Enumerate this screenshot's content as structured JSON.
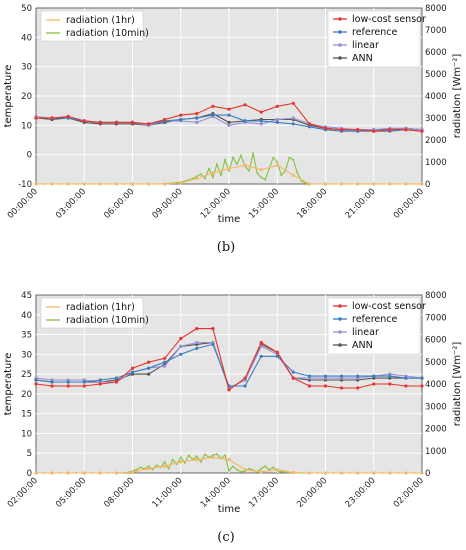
{
  "charts": [
    {
      "label": "(b)",
      "xlabel": "time",
      "ylabel_left": "temperature",
      "ylabel_right": "radiation [Wm⁻²]",
      "xtick_labels": [
        "00:00:00",
        "03:00:00",
        "06:00:00",
        "09:00:00",
        "12:00:00",
        "15:00:00",
        "18:00:00",
        "21:00:00",
        "00:00:00"
      ],
      "ylim": [
        -10,
        50
      ],
      "yticks": [
        "-10",
        "0",
        "10",
        "20",
        "30",
        "40",
        "50"
      ],
      "y2lim": [
        0,
        8000
      ],
      "y2ticks": [
        "0",
        "1000",
        "2000",
        "3000",
        "4000",
        "5000",
        "6000",
        "7000",
        "8000"
      ],
      "legend_left": [
        "radiation (1hr)",
        "radiation (10min)"
      ],
      "legend_right": [
        "low-cost sensor",
        "reference",
        "linear",
        "ANN"
      ]
    },
    {
      "label": "(c)",
      "xlabel": "time",
      "ylabel_left": "temperature",
      "ylabel_right": "radiation [Wm⁻²]",
      "xtick_labels": [
        "02:00:00",
        "05:00:00",
        "08:00:00",
        "11:00:00",
        "14:00:00",
        "17:00:00",
        "20:00:00",
        "23:00:00",
        "02:00:00"
      ],
      "ylim": [
        0,
        45
      ],
      "yticks": [
        "0",
        "5",
        "10",
        "15",
        "20",
        "25",
        "30",
        "35",
        "40",
        "45"
      ],
      "y2lim": [
        0,
        8000
      ],
      "y2ticks": [
        "0",
        "1000",
        "2000",
        "3000",
        "4000",
        "5000",
        "6000",
        "7000",
        "8000"
      ],
      "legend_left": [
        "radiation (1hr)",
        "radiation (10min)"
      ],
      "legend_right": [
        "low-cost sensor",
        "reference",
        "linear",
        "ANN"
      ]
    }
  ],
  "colors": {
    "low_cost": "#e8342c",
    "reference": "#3a7fbe",
    "linear": "#9b8fd6",
    "ann": "#555555",
    "rad_1hr": "#f5b862",
    "rad_10min": "#88c040",
    "plot_bg": "#e5e5e5"
  },
  "chart_data": [
    {
      "type": "line",
      "x": [
        0,
        1,
        2,
        3,
        4,
        5,
        6,
        7,
        8,
        9,
        10,
        11,
        12,
        13,
        14,
        15,
        16,
        17,
        18,
        19,
        20,
        21,
        22,
        23,
        24
      ],
      "series": [
        {
          "name": "low-cost sensor",
          "axis": "left",
          "values": [
            12.5,
            12.5,
            13,
            11.5,
            11,
            11,
            11,
            10.5,
            12,
            13.5,
            14,
            16.5,
            15.5,
            17,
            14.5,
            16.5,
            17.5,
            10.5,
            9,
            8.5,
            8.5,
            8,
            8.5,
            8.5,
            8
          ]
        },
        {
          "name": "reference",
          "axis": "left",
          "values": [
            12.5,
            12.5,
            12.5,
            11.5,
            11,
            11,
            11,
            10.5,
            11.5,
            12,
            12.5,
            13.5,
            13.5,
            11.5,
            11.5,
            11,
            10.5,
            9.5,
            8.5,
            8,
            8,
            8,
            8,
            8.5,
            8
          ]
        },
        {
          "name": "linear",
          "axis": "left",
          "values": [
            13,
            12.5,
            13,
            11.5,
            11,
            11,
            11,
            10,
            11.5,
            11.5,
            11,
            13,
            10,
            11,
            10.5,
            12,
            12.5,
            10.5,
            9.5,
            9,
            8.5,
            8.5,
            9,
            9,
            8.5
          ]
        },
        {
          "name": "ANN",
          "axis": "left",
          "values": [
            12.5,
            12,
            12.5,
            11,
            10.5,
            10.5,
            10.5,
            10,
            11,
            12,
            12.5,
            14,
            11,
            11.5,
            12,
            12,
            12,
            10,
            9,
            8.5,
            8.5,
            8.5,
            8.5,
            9,
            8.5
          ]
        },
        {
          "name": "radiation (1hr)",
          "axis": "right",
          "values": [
            0,
            0,
            0,
            0,
            0,
            0,
            0,
            0,
            0,
            50,
            250,
            500,
            700,
            850,
            650,
            850,
            400,
            0,
            0,
            0,
            0,
            0,
            0,
            0,
            0
          ]
        }
      ],
      "series_10min": {
        "name": "radiation (10min)",
        "axis": "right",
        "x": [
          0,
          0.5,
          1,
          1.5,
          2,
          2.5,
          3,
          3.5,
          4,
          4.5,
          5,
          5.5,
          6,
          6.5,
          7,
          7.5,
          8,
          8.25,
          8.5,
          8.75,
          9,
          9.25,
          9.5,
          9.75,
          10,
          10.25,
          10.5,
          10.75,
          11,
          11.25,
          11.5,
          11.75,
          12,
          12.25,
          12.5,
          12.75,
          13,
          13.25,
          13.5,
          13.75,
          14,
          14.25,
          14.5,
          14.75,
          15,
          15.25,
          15.5,
          15.75,
          16,
          16.25,
          16.5,
          16.75,
          17,
          17.5,
          18,
          18.5,
          19,
          19.5,
          20,
          20.5,
          21,
          21.5,
          22,
          22.5,
          23,
          23.5,
          24
        ],
        "values": [
          0,
          0,
          0,
          0,
          0,
          0,
          0,
          0,
          0,
          0,
          0,
          0,
          0,
          0,
          0,
          0,
          10,
          20,
          40,
          60,
          90,
          130,
          180,
          250,
          350,
          450,
          250,
          700,
          300,
          900,
          400,
          1100,
          600,
          1200,
          900,
          1300,
          800,
          600,
          1400,
          500,
          300,
          200,
          700,
          1200,
          1000,
          400,
          600,
          1200,
          1100,
          500,
          150,
          40,
          0,
          0,
          0,
          0,
          0,
          0,
          0,
          0,
          0,
          0,
          0,
          0,
          0,
          0,
          0
        ]
      },
      "xlabel": "time",
      "ylabel": "temperature",
      "ylim": [
        -10,
        50
      ],
      "y2lim": [
        0,
        8000
      ]
    },
    {
      "type": "line",
      "x": [
        0,
        1,
        2,
        3,
        4,
        5,
        6,
        7,
        8,
        9,
        10,
        11,
        12,
        13,
        14,
        15,
        16,
        17,
        18,
        19,
        20,
        21,
        22,
        23,
        24
      ],
      "series": [
        {
          "name": "low-cost sensor",
          "axis": "left",
          "values": [
            22.5,
            22,
            22,
            22,
            22.5,
            23,
            26.5,
            28,
            29,
            34,
            36.5,
            36.5,
            21,
            24,
            33,
            30.5,
            24,
            22,
            22,
            21.5,
            21.5,
            22.5,
            22.5,
            22,
            22
          ]
        },
        {
          "name": "reference",
          "axis": "left",
          "values": [
            23.5,
            23,
            23,
            23,
            23.5,
            24,
            25.5,
            26.5,
            28,
            30,
            31.5,
            32.5,
            22,
            22,
            29.5,
            29.5,
            25.5,
            24.5,
            24.5,
            24.5,
            24.5,
            24.5,
            24.5,
            24,
            24
          ]
        },
        {
          "name": "linear",
          "axis": "left",
          "values": [
            24,
            23.5,
            23.5,
            23.5,
            23,
            23,
            25.5,
            26.5,
            27,
            32,
            33,
            33,
            21.5,
            23.5,
            32,
            30,
            24,
            24,
            24,
            24,
            24,
            24.5,
            25,
            24.5,
            24
          ]
        },
        {
          "name": "ANN",
          "axis": "left",
          "values": [
            23.5,
            23,
            23,
            23,
            23,
            23.5,
            25,
            25,
            27.5,
            32,
            32.5,
            33,
            21.5,
            23.5,
            32.5,
            30.5,
            24,
            23.5,
            23.5,
            23.5,
            23.5,
            24,
            24,
            24,
            24
          ]
        },
        {
          "name": "radiation (1hr)",
          "axis": "right",
          "values": [
            0,
            0,
            0,
            0,
            0,
            0,
            30,
            200,
            300,
            500,
            600,
            700,
            600,
            150,
            50,
            150,
            20,
            0,
            0,
            0,
            0,
            0,
            0,
            0,
            0
          ]
        }
      ],
      "series_10min": {
        "name": "radiation (10min)",
        "axis": "right",
        "x": [
          0,
          0.5,
          1,
          1.5,
          2,
          2.5,
          3,
          3.5,
          4,
          4.5,
          5,
          5.5,
          5.75,
          6,
          6.25,
          6.5,
          6.75,
          7,
          7.25,
          7.5,
          7.75,
          8,
          8.25,
          8.5,
          8.75,
          9,
          9.25,
          9.5,
          9.75,
          10,
          10.25,
          10.5,
          10.75,
          11,
          11.25,
          11.5,
          11.75,
          12,
          12.25,
          12.5,
          12.75,
          13,
          13.25,
          13.5,
          13.75,
          14,
          14.25,
          14.5,
          14.75,
          15,
          15.25,
          15.5,
          15.75,
          16,
          16.5,
          17,
          17.5,
          18,
          18.5,
          19,
          19.5,
          20,
          20.5,
          21,
          21.5,
          22,
          22.5,
          23,
          23.5,
          24
        ],
        "values": [
          0,
          0,
          0,
          0,
          0,
          0,
          0,
          0,
          0,
          0,
          0,
          10,
          30,
          80,
          150,
          250,
          180,
          300,
          150,
          350,
          250,
          500,
          200,
          600,
          400,
          700,
          450,
          800,
          600,
          750,
          500,
          850,
          700,
          800,
          850,
          650,
          800,
          100,
          300,
          150,
          50,
          80,
          200,
          120,
          60,
          200,
          300,
          150,
          250,
          100,
          60,
          30,
          10,
          0,
          0,
          0,
          0,
          0,
          0,
          0,
          0,
          0,
          0,
          0,
          0,
          0,
          0,
          0,
          0,
          0
        ]
      },
      "xlabel": "time",
      "ylabel": "temperature",
      "ylim": [
        0,
        45
      ],
      "y2lim": [
        0,
        8000
      ]
    }
  ]
}
